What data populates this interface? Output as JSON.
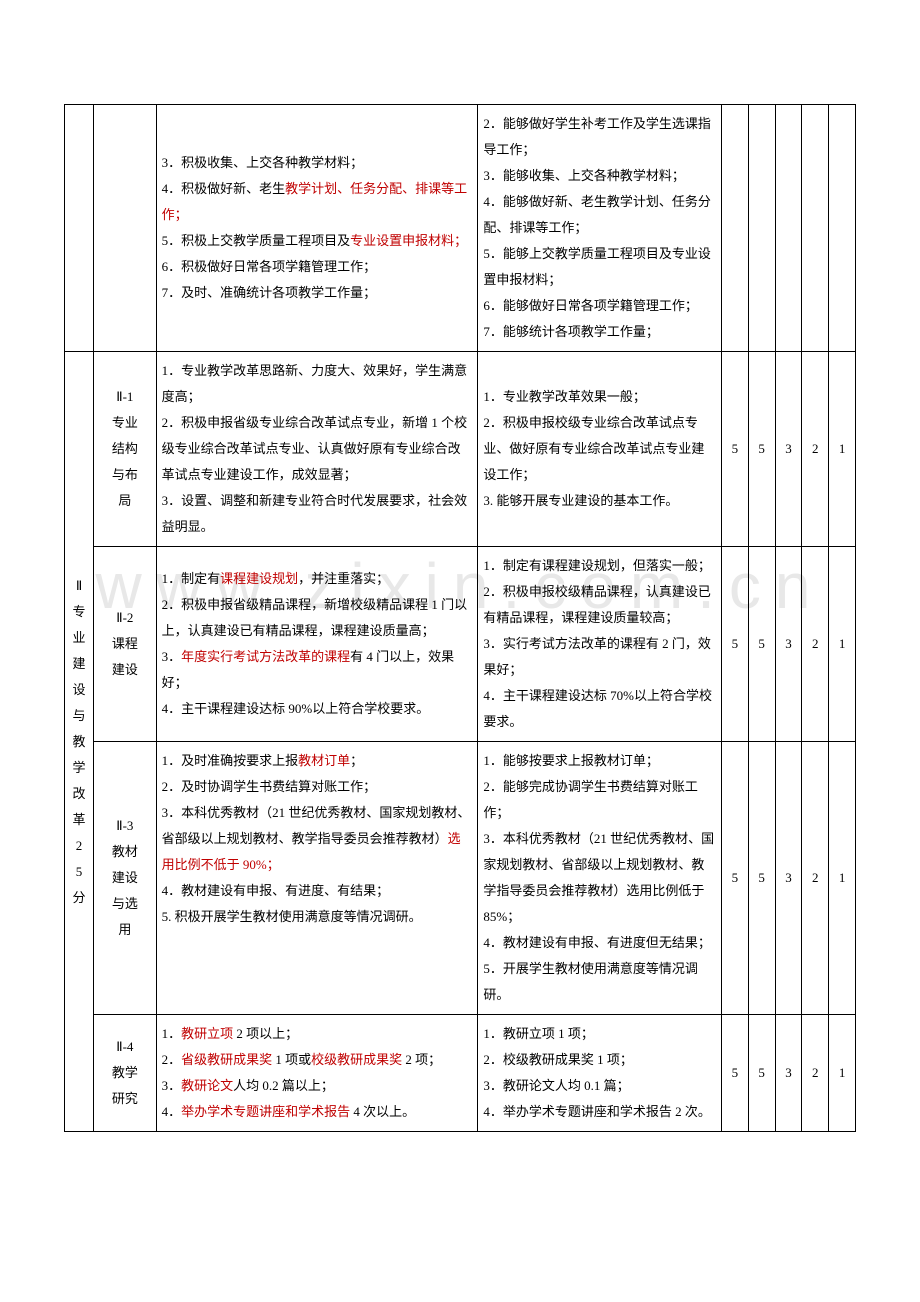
{
  "watermark": "www.zixin.com.cn",
  "scores": [
    "5",
    "5",
    "3",
    "2",
    "1"
  ],
  "row0": {
    "colA": [
      {
        "t": "3．积极收集、上交各种教学材料；",
        "red": false
      },
      {
        "t": "4．积极做好新、老生",
        "red": false
      },
      {
        "t": "教学计划、任务分配、排课等工作；",
        "red": true
      },
      {
        "t": "5．积极上交教学质量工程项目及",
        "red": false
      },
      {
        "t": "专业设置申报材料；",
        "red": true
      },
      {
        "t": "6．积极做好日常各项学籍管理工作；",
        "red": false
      },
      {
        "t": "7．及时、准确统计各项教学工作量；",
        "red": false
      }
    ],
    "colB": [
      "2．能够做好学生补考工作及学生选课指导工作；",
      "3．能够收集、上交各种教学材料；",
      "4．能够做好新、老生教学计划、任务分配、排课等工作；",
      "5．能够上交教学质量工程项目及专业设置申报材料；",
      "6．能够做好日常各项学籍管理工作；",
      "7．能够统计各项教学工作量；"
    ]
  },
  "catII": {
    "label": "Ⅱ专业建设与教学改革25分"
  },
  "row1": {
    "sub": "Ⅱ-1\n专业\n结构\n与布\n局",
    "colA": [
      {
        "t": "1．专业教学改革思路新、力度大、效果好，学生满意度高；",
        "red": false
      },
      {
        "t": "2．积极申报省级专业综合改革试点专业，新增 1 个校级专业综合改革试点专业、认真做好原有专业综合改革试点专业建设工作，成效显著；",
        "red": false
      },
      {
        "t": "3．设置、调整和新建专业符合时代发展要求，社会效益明显。",
        "red": false
      }
    ],
    "colB": [
      "1．专业教学改革效果一般；",
      "2．积极申报校级专业综合改革试点专业、做好原有专业综合改革试点专业建设工作；",
      "3. 能够开展专业建设的基本工作。"
    ]
  },
  "row2": {
    "sub": "Ⅱ-2\n课程\n建设",
    "colA": [
      {
        "t": "1．制定有",
        "red": false
      },
      {
        "t": "课程建设规划",
        "red": true
      },
      {
        "t": "，并注重落实；",
        "red": false
      },
      {
        "t": "2．积极申报省级精品课程，新增校级精品课程 1 门以上，认真建设已有精品课程，课程建设质量高；",
        "red": false
      },
      {
        "t": "3．",
        "red": false
      },
      {
        "t": "年度实行考试方法改革的课程",
        "red": true
      },
      {
        "t": "有 4 门以上，效果好；",
        "red": false
      },
      {
        "t": "4．主干课程建设达标 90%以上符合学校要求。",
        "red": false
      }
    ],
    "colB": [
      "1．制定有课程建设规划，但落实一般；",
      "2．积极申报校级精品课程，认真建设已有精品课程，课程建设质量较高；",
      "3．实行考试方法改革的课程有 2 门，效果好；",
      "4．主干课程建设达标 70%以上符合学校要求。"
    ]
  },
  "row3": {
    "sub": "Ⅱ-3\n教材\n建设\n与选\n用",
    "colA": [
      {
        "t": "1．及时准确按要求上报",
        "red": false
      },
      {
        "t": "教材订单",
        "red": true
      },
      {
        "t": "；",
        "red": false
      },
      {
        "t": "2．及时协调学生书费结算对账工作；",
        "red": false
      },
      {
        "t": "3．本科优秀教材（21 世纪优秀教材、国家规划教材、省部级以上规划教材、教学指导委员会推荐教材）",
        "red": false
      },
      {
        "t": "选用比例不低于 90%；",
        "red": true
      },
      {
        "t": "4．教材建设有申报、有进度、有结果；",
        "red": false
      },
      {
        "t": "5. 积极开展学生教材使用满意度等情况调研。",
        "red": false
      }
    ],
    "colB": [
      "1．能够按要求上报教材订单；",
      "2．能够完成协调学生书费结算对账工作；",
      "3．本科优秀教材（21 世纪优秀教材、国家规划教材、省部级以上规划教材、教学指导委员会推荐教材）选用比例低于 85%；",
      "4．教材建设有申报、有进度但无结果；",
      "5．开展学生教材使用满意度等情况调研。"
    ]
  },
  "row4": {
    "sub": "Ⅱ-4\n教学\n研究",
    "colA": [
      {
        "t": "1．",
        "red": false
      },
      {
        "t": "教研立项",
        "red": true
      },
      {
        "t": " 2 项以上；",
        "red": false
      },
      {
        "t": "2．",
        "red": false
      },
      {
        "t": "省级教研成果奖",
        "red": true
      },
      {
        "t": " 1 项或",
        "red": false
      },
      {
        "t": "校级教研成果奖",
        "red": true
      },
      {
        "t": " 2 项；",
        "red": false
      },
      {
        "t": "3．",
        "red": false
      },
      {
        "t": "教研论文",
        "red": true
      },
      {
        "t": "人均 0.2 篇以上；",
        "red": false
      },
      {
        "t": "4．",
        "red": false
      },
      {
        "t": "举办学术专题讲座和学术报告",
        "red": true
      },
      {
        "t": " 4 次以上。",
        "red": false
      }
    ],
    "colB": [
      "1．教研立项 1 项；",
      "2．校级教研成果奖 1 项；",
      "3．教研论文人均 0.1 篇；",
      "4．举办学术专题讲座和学术报告 2 次。"
    ]
  }
}
